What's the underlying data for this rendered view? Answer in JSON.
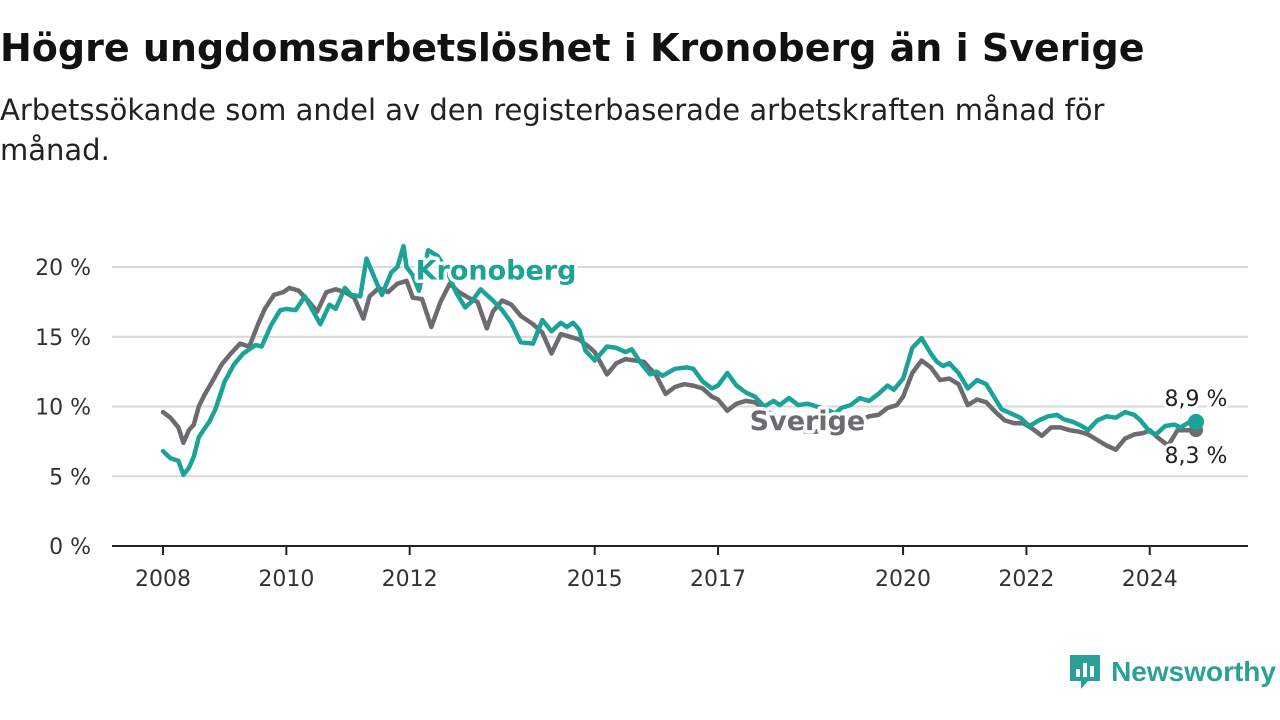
{
  "header": {
    "title": "Högre ungdomsarbetslöshet i Kronoberg än i Sverige",
    "subtitle": "Arbetssökande som andel av den registerbaserade arbetskraften månad för månad."
  },
  "brand": {
    "name": "Newsworthy",
    "icon": "bar-chart-speech-icon"
  },
  "colors": {
    "kronoberg": "#1aa396",
    "sverige": "#6d6b70",
    "grid": "#d9d9d9",
    "axis": "#222222"
  },
  "chart_data": {
    "type": "line",
    "x_unit": "year (decimal)",
    "xlim": [
      2008,
      2024.75
    ],
    "ylim": [
      0,
      20
    ],
    "grid": true,
    "y_ticks": [
      {
        "value": 0,
        "label": "0 %"
      },
      {
        "value": 5,
        "label": "5 %"
      },
      {
        "value": 10,
        "label": "10 %"
      },
      {
        "value": 15,
        "label": "15 %"
      },
      {
        "value": 20,
        "label": "20 %"
      }
    ],
    "x_ticks": [
      {
        "value": 2008,
        "label": "2008"
      },
      {
        "value": 2010,
        "label": "2010"
      },
      {
        "value": 2012,
        "label": "2012"
      },
      {
        "value": 2015,
        "label": "2015"
      },
      {
        "value": 2017,
        "label": "2017"
      },
      {
        "value": 2020,
        "label": "2020"
      },
      {
        "value": 2022,
        "label": "2022"
      },
      {
        "value": 2024,
        "label": "2024"
      }
    ],
    "series": [
      {
        "name": "Kronoberg",
        "label_year": 2013.4,
        "label_value": 19.1,
        "end_label": "8,9 %",
        "x": [
          2008.0,
          2008.12,
          2008.25,
          2008.33,
          2008.42,
          2008.5,
          2008.58,
          2008.67,
          2008.75,
          2008.85,
          2009.0,
          2009.15,
          2009.3,
          2009.5,
          2009.6,
          2009.75,
          2009.9,
          2010.0,
          2010.15,
          2010.3,
          2010.4,
          2010.55,
          2010.7,
          2010.8,
          2010.95,
          2011.05,
          2011.2,
          2011.3,
          2011.45,
          2011.55,
          2011.7,
          2011.8,
          2011.9,
          2011.95,
          2012.05,
          2012.15,
          2012.3,
          2012.45,
          2012.6,
          2012.75,
          2012.9,
          2013.0,
          2013.15,
          2013.35,
          2013.5,
          2013.65,
          2013.8,
          2014.0,
          2014.15,
          2014.3,
          2014.45,
          2014.55,
          2014.65,
          2014.75,
          2014.85,
          2015.0,
          2015.1,
          2015.2,
          2015.35,
          2015.5,
          2015.6,
          2015.75,
          2015.9,
          2016.0,
          2016.1,
          2016.3,
          2016.5,
          2016.6,
          2016.75,
          2016.9,
          2017.0,
          2017.15,
          2017.3,
          2017.45,
          2017.6,
          2017.75,
          2017.9,
          2018.0,
          2018.15,
          2018.3,
          2018.45,
          2018.6,
          2018.75,
          2018.9,
          2019.0,
          2019.15,
          2019.3,
          2019.45,
          2019.6,
          2019.75,
          2019.85,
          2020.0,
          2020.15,
          2020.3,
          2020.45,
          2020.55,
          2020.65,
          2020.75,
          2020.9,
          2021.05,
          2021.2,
          2021.35,
          2021.5,
          2021.6,
          2021.75,
          2021.9,
          2022.05,
          2022.2,
          2022.35,
          2022.5,
          2022.6,
          2022.75,
          2022.9,
          2023.0,
          2023.15,
          2023.3,
          2023.45,
          2023.6,
          2023.75,
          2023.85,
          2024.0,
          2024.1,
          2024.25,
          2024.4,
          2024.5,
          2024.65,
          2024.75
        ],
        "values": [
          6.8,
          6.3,
          6.1,
          5.1,
          5.6,
          6.4,
          7.8,
          8.4,
          8.9,
          9.8,
          11.8,
          13.0,
          13.8,
          14.4,
          14.3,
          15.8,
          16.9,
          17.0,
          16.9,
          17.9,
          17.1,
          15.9,
          17.3,
          17.0,
          18.5,
          18.0,
          17.9,
          20.6,
          19.0,
          18.0,
          19.6,
          20.0,
          21.5,
          20.0,
          19.4,
          18.3,
          21.2,
          20.8,
          19.8,
          18.2,
          17.1,
          17.5,
          18.4,
          17.6,
          16.9,
          16.0,
          14.6,
          14.5,
          16.2,
          15.4,
          16.0,
          15.7,
          16.0,
          15.5,
          14.0,
          13.3,
          13.8,
          14.3,
          14.2,
          13.9,
          14.1,
          13.1,
          12.3,
          12.5,
          12.2,
          12.7,
          12.8,
          12.7,
          11.8,
          11.3,
          11.5,
          12.4,
          11.5,
          11.0,
          10.7,
          10.0,
          10.4,
          10.1,
          10.6,
          10.1,
          10.2,
          10.0,
          9.8,
          9.5,
          9.9,
          10.1,
          10.6,
          10.4,
          10.9,
          11.5,
          11.2,
          12.0,
          14.2,
          14.9,
          13.8,
          13.2,
          12.9,
          13.1,
          12.4,
          11.3,
          11.9,
          11.6,
          10.5,
          9.8,
          9.5,
          9.2,
          8.6,
          9.0,
          9.3,
          9.4,
          9.1,
          8.9,
          8.6,
          8.3,
          9.0,
          9.3,
          9.2,
          9.6,
          9.4,
          9.0,
          8.2,
          8.0,
          8.6,
          8.7,
          8.5,
          8.9,
          8.9
        ]
      },
      {
        "name": "Sverige",
        "label_year": 2018.45,
        "label_value": 8.3,
        "end_label": "8,3 %",
        "x": [
          2008.0,
          2008.12,
          2008.25,
          2008.33,
          2008.42,
          2008.5,
          2008.58,
          2008.67,
          2008.8,
          2008.95,
          2009.1,
          2009.25,
          2009.4,
          2009.55,
          2009.65,
          2009.8,
          2009.95,
          2010.05,
          2010.2,
          2010.35,
          2010.5,
          2010.65,
          2010.8,
          2010.95,
          2011.1,
          2011.25,
          2011.35,
          2011.5,
          2011.65,
          2011.8,
          2011.95,
          2012.05,
          2012.2,
          2012.35,
          2012.5,
          2012.65,
          2012.8,
          2012.95,
          2013.1,
          2013.25,
          2013.35,
          2013.5,
          2013.65,
          2013.8,
          2014.0,
          2014.15,
          2014.3,
          2014.45,
          2014.6,
          2014.75,
          2014.9,
          2015.0,
          2015.2,
          2015.35,
          2015.5,
          2015.65,
          2015.8,
          2016.0,
          2016.15,
          2016.3,
          2016.45,
          2016.6,
          2016.75,
          2016.9,
          2017.0,
          2017.15,
          2017.3,
          2017.45,
          2017.6,
          2017.75,
          2017.9,
          2018.0,
          2018.15,
          2018.3,
          2018.45,
          2018.6,
          2018.75,
          2018.9,
          2019.0,
          2019.15,
          2019.3,
          2019.45,
          2019.6,
          2019.75,
          2019.9,
          2020.0,
          2020.15,
          2020.3,
          2020.45,
          2020.6,
          2020.75,
          2020.9,
          2021.05,
          2021.2,
          2021.35,
          2021.5,
          2021.65,
          2021.8,
          2021.95,
          2022.1,
          2022.25,
          2022.4,
          2022.55,
          2022.7,
          2022.85,
          2023.0,
          2023.15,
          2023.3,
          2023.45,
          2023.6,
          2023.75,
          2023.9,
          2024.0,
          2024.15,
          2024.3,
          2024.45,
          2024.6,
          2024.75
        ],
        "values": [
          9.6,
          9.2,
          8.5,
          7.4,
          8.3,
          8.7,
          10.0,
          10.8,
          11.8,
          13.0,
          13.8,
          14.5,
          14.3,
          16.0,
          17.0,
          18.0,
          18.2,
          18.5,
          18.3,
          17.6,
          16.8,
          18.2,
          18.4,
          18.2,
          17.8,
          16.3,
          17.9,
          18.5,
          18.2,
          18.8,
          19.0,
          17.8,
          17.7,
          15.7,
          17.5,
          18.8,
          18.2,
          17.8,
          17.5,
          15.6,
          16.8,
          17.6,
          17.3,
          16.5,
          15.9,
          15.3,
          13.8,
          15.2,
          15.0,
          14.8,
          14.3,
          13.9,
          12.3,
          13.1,
          13.4,
          13.3,
          13.2,
          12.2,
          10.9,
          11.4,
          11.6,
          11.5,
          11.3,
          10.7,
          10.5,
          9.7,
          10.2,
          10.4,
          10.3,
          9.8,
          9.3,
          9.2,
          8.8,
          8.3,
          8.2,
          8.2,
          8.5,
          9.1,
          8.7,
          8.3,
          9.0,
          9.3,
          9.4,
          9.9,
          10.1,
          10.7,
          12.4,
          13.3,
          12.8,
          11.9,
          12.0,
          11.6,
          10.1,
          10.5,
          10.3,
          9.6,
          9.0,
          8.8,
          8.8,
          8.4,
          7.9,
          8.5,
          8.5,
          8.3,
          8.2,
          8.0,
          7.6,
          7.2,
          6.9,
          7.7,
          8.0,
          8.1,
          8.3,
          7.7,
          7.2,
          8.3,
          8.3,
          8.3
        ]
      }
    ]
  }
}
